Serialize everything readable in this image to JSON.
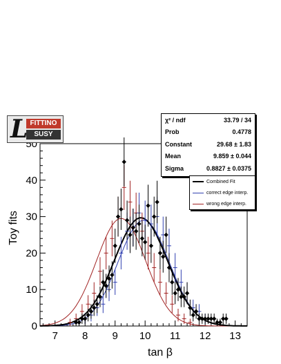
{
  "logo": {
    "top": "FITTINO",
    "bottom": "SUSY"
  },
  "stats": {
    "rows": [
      {
        "label": "χ² / ndf",
        "value": "33.79 / 34"
      },
      {
        "label": "Prob",
        "value": "0.4778"
      },
      {
        "label": "Constant",
        "value": "29.68 ± 1.83"
      },
      {
        "label": "Mean",
        "value": "9.859 ± 0.044"
      },
      {
        "label": "Sigma",
        "value": "0.8827 ± 0.0375"
      }
    ]
  },
  "legend": {
    "items": [
      {
        "label": "Combined Fit",
        "color": "#000000"
      },
      {
        "label": "correct edge interp.",
        "color": "#2f3fb0"
      },
      {
        "label": "wrong edge interp.",
        "color": "#a02020"
      }
    ]
  },
  "chart_data": {
    "type": "scatter",
    "xlabel": "tan β",
    "ylabel": "Toy fits",
    "xlim": [
      6.5,
      13.4
    ],
    "ylim": [
      0,
      50
    ],
    "xticks": [
      7,
      8,
      9,
      10,
      11,
      12,
      13
    ],
    "yticks": [
      0,
      10,
      20,
      30,
      40,
      50
    ],
    "series": [
      {
        "name": "Combined Fit",
        "color": "#000000",
        "fit": {
          "constant": 29.68,
          "mean": 9.859,
          "sigma": 0.8827
        },
        "x": [
          7.7,
          7.8,
          7.9,
          8.0,
          8.1,
          8.2,
          8.3,
          8.4,
          8.5,
          8.6,
          8.7,
          8.8,
          8.9,
          9.0,
          9.1,
          9.2,
          9.3,
          9.4,
          9.5,
          9.6,
          9.7,
          9.8,
          9.9,
          10.0,
          10.1,
          10.2,
          10.3,
          10.4,
          10.5,
          10.6,
          10.7,
          10.8,
          10.9,
          11.0,
          11.1,
          11.2,
          11.3,
          11.4,
          11.5,
          11.6,
          11.7,
          11.8,
          11.9,
          12.0,
          12.1,
          12.2,
          12.3,
          12.4,
          12.5,
          12.6,
          12.7
        ],
        "y": [
          1,
          1,
          2,
          2,
          3,
          4,
          5,
          6,
          8,
          12,
          11,
          13,
          14,
          22,
          30,
          32,
          45,
          29,
          25,
          27,
          26,
          28,
          24,
          23,
          33,
          22,
          30,
          34,
          20,
          19,
          25,
          16,
          12,
          9,
          10,
          8,
          8,
          9,
          5,
          3,
          4,
          2,
          2,
          2,
          2,
          2,
          2,
          1,
          1,
          2,
          2
        ]
      },
      {
        "name": "correct edge interp.",
        "color": "#2f3fb0",
        "fit": {
          "constant": 29.0,
          "mean": 9.95,
          "sigma": 0.85
        },
        "x": [
          8.0,
          8.2,
          8.4,
          8.6,
          8.8,
          9.0,
          9.2,
          9.4,
          9.6,
          9.8,
          10.0,
          10.2,
          10.4,
          10.6,
          10.8,
          11.0,
          11.2,
          11.4,
          11.6,
          11.8,
          12.0
        ],
        "y": [
          2,
          3,
          5,
          6,
          10,
          12,
          20,
          26,
          27,
          31,
          29,
          28,
          30,
          25,
          22,
          16,
          12,
          9,
          5,
          4,
          2
        ]
      },
      {
        "name": "wrong edge interp.",
        "color": "#a02020",
        "fit": {
          "constant": 29.5,
          "mean": 9.2,
          "sigma": 0.82
        },
        "x": [
          7.5,
          7.7,
          7.9,
          8.1,
          8.3,
          8.5,
          8.7,
          8.9,
          9.1,
          9.3,
          9.5,
          9.7,
          9.9,
          10.1,
          10.3,
          10.5,
          10.7,
          10.9,
          11.1,
          11.3,
          11.5
        ],
        "y": [
          1,
          2,
          4,
          6,
          9,
          15,
          20,
          24,
          30,
          38,
          34,
          31,
          26,
          20,
          16,
          12,
          9,
          6,
          3,
          2,
          1
        ]
      }
    ]
  }
}
